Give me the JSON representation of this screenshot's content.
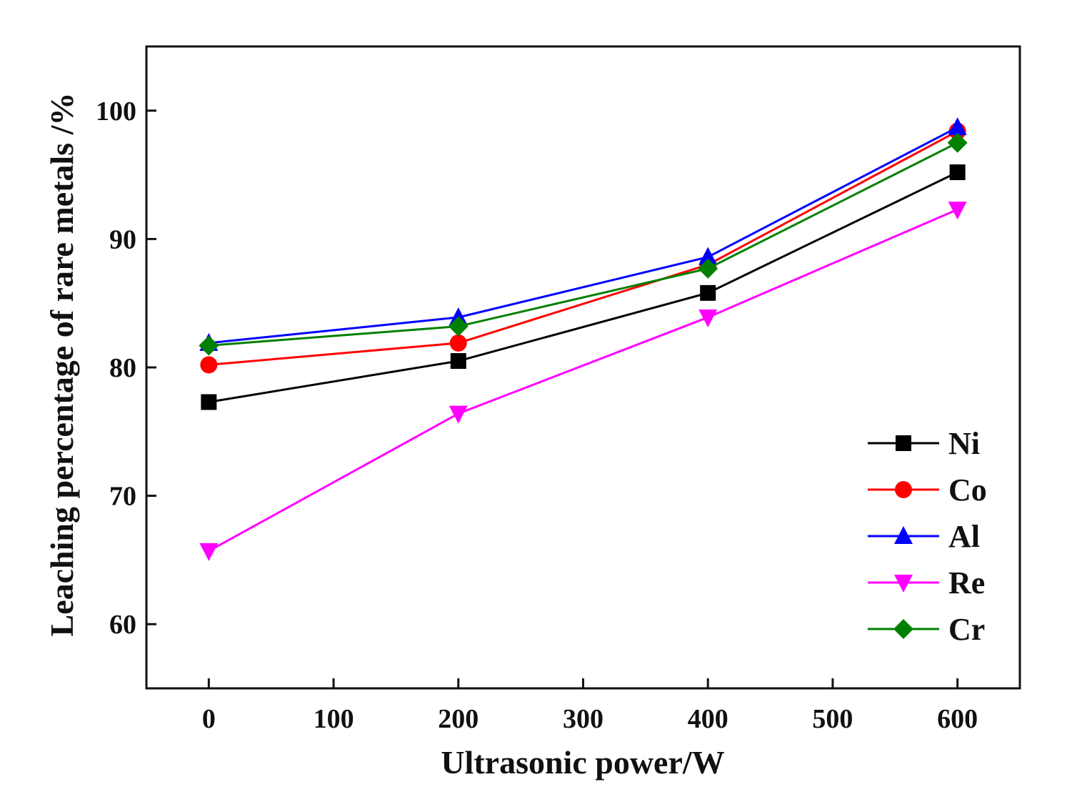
{
  "chart_data": {
    "type": "line",
    "title": "",
    "xlabel": "Ultrasonic power/W",
    "ylabel": "Leaching percentage of rare metals /%",
    "xlim": [
      -50,
      650
    ],
    "ylim": [
      55,
      105
    ],
    "xticks": [
      0,
      100,
      200,
      300,
      400,
      500,
      600
    ],
    "yticks": [
      60,
      70,
      80,
      90,
      100
    ],
    "x": [
      0,
      200,
      400,
      600
    ],
    "grid": false,
    "legend_position": "bottom-right",
    "series": [
      {
        "name": "Ni",
        "color": "#000000",
        "marker": "square",
        "values": [
          77.3,
          80.5,
          85.8,
          95.2
        ]
      },
      {
        "name": "Co",
        "color": "#ff0000",
        "marker": "circle",
        "values": [
          80.2,
          81.9,
          88.0,
          98.4
        ]
      },
      {
        "name": "Al",
        "color": "#0000ff",
        "marker": "triangle-up",
        "values": [
          81.9,
          83.9,
          88.6,
          98.7
        ]
      },
      {
        "name": "Re",
        "color": "#ff00ff",
        "marker": "triangle-down",
        "values": [
          65.7,
          76.4,
          83.9,
          92.3
        ]
      },
      {
        "name": "Cr",
        "color": "#008000",
        "marker": "diamond",
        "values": [
          81.7,
          83.2,
          87.7,
          97.5
        ]
      }
    ]
  }
}
